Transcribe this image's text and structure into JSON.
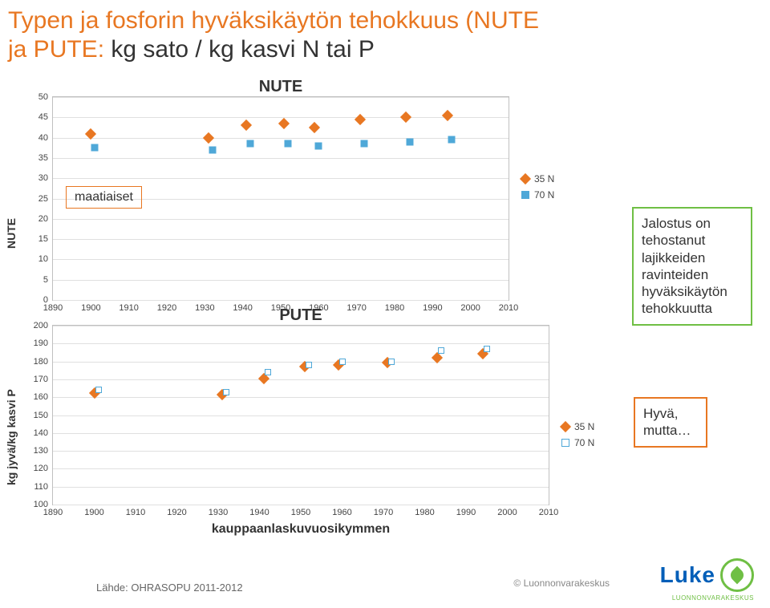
{
  "title": {
    "line1": "Typen ja fosforin hyväksikäytön tehokkuus (NUTE",
    "line2_orange": "ja PUTE:",
    "line2_black": "kg sato / kg kasvi N tai P"
  },
  "nute_chart": {
    "type": "scatter",
    "title": "NUTE",
    "y_label": "NUTE",
    "xlim": [
      1890,
      2010
    ],
    "ylim": [
      0,
      50
    ],
    "y_ticks": [
      0,
      5,
      10,
      15,
      20,
      25,
      30,
      35,
      40,
      45,
      50
    ],
    "x_ticks": [
      1890,
      1900,
      1910,
      1920,
      1930,
      1940,
      1950,
      1960,
      1970,
      1980,
      1990,
      2000,
      2010
    ],
    "grid_color": "#e0e0e0",
    "background": "#ffffff",
    "series_35N": {
      "label": "35 N",
      "color": "#e87722",
      "marker": "diamond",
      "points": [
        {
          "x": 1901,
          "y": 40
        },
        {
          "x": 1932,
          "y": 39
        },
        {
          "x": 1942,
          "y": 42
        },
        {
          "x": 1952,
          "y": 42.5
        },
        {
          "x": 1960,
          "y": 41.5
        },
        {
          "x": 1972,
          "y": 43.5
        },
        {
          "x": 1984,
          "y": 44
        },
        {
          "x": 1995,
          "y": 44.5
        }
      ]
    },
    "series_70N": {
      "label": "70 N",
      "color": "#4fa8d8",
      "marker": "square",
      "points": [
        {
          "x": 1901,
          "y": 37.5
        },
        {
          "x": 1932,
          "y": 37
        },
        {
          "x": 1942,
          "y": 38.5
        },
        {
          "x": 1952,
          "y": 38.5
        },
        {
          "x": 1960,
          "y": 38
        },
        {
          "x": 1972,
          "y": 38.5
        },
        {
          "x": 1984,
          "y": 39
        },
        {
          "x": 1995,
          "y": 39.5
        }
      ]
    },
    "annotation_box": {
      "label": "maatiaiset"
    },
    "legend_items": [
      "35 N",
      "70 N"
    ]
  },
  "pute_chart": {
    "type": "scatter",
    "title": "PUTE",
    "y_label": "kg jyvä/kg kasvi P",
    "x_label": "kauppaanlaskuvuosikymmen",
    "xlim": [
      1890,
      2010
    ],
    "ylim": [
      100,
      200
    ],
    "y_ticks": [
      100,
      110,
      120,
      130,
      140,
      150,
      160,
      170,
      180,
      190,
      200
    ],
    "x_ticks": [
      1890,
      1900,
      1910,
      1920,
      1930,
      1940,
      1950,
      1960,
      1970,
      1980,
      1990,
      2000,
      2010
    ],
    "grid_color": "#e0e0e0",
    "background": "#ffffff",
    "series_35N": {
      "label": "35 N",
      "color": "#e87722",
      "marker": "diamond",
      "points": [
        {
          "x": 1901,
          "y": 160
        },
        {
          "x": 1932,
          "y": 159
        },
        {
          "x": 1942,
          "y": 168
        },
        {
          "x": 1952,
          "y": 175
        },
        {
          "x": 1960,
          "y": 176
        },
        {
          "x": 1972,
          "y": 177
        },
        {
          "x": 1984,
          "y": 180
        },
        {
          "x": 1995,
          "y": 182
        }
      ]
    },
    "series_70N": {
      "label": "70 N",
      "color": "#4fa8d8",
      "marker": "square-open",
      "points": [
        {
          "x": 1901,
          "y": 164
        },
        {
          "x": 1932,
          "y": 163
        },
        {
          "x": 1942,
          "y": 174
        },
        {
          "x": 1952,
          "y": 178
        },
        {
          "x": 1960,
          "y": 180
        },
        {
          "x": 1972,
          "y": 180
        },
        {
          "x": 1984,
          "y": 186
        },
        {
          "x": 1995,
          "y": 187
        }
      ]
    },
    "legend_items": [
      "35 N",
      "70 N"
    ]
  },
  "right_annotations": {
    "green_box": "Jalostus on\ntehostanut\nlajikkeiden\nravinteiden\nhyväksikäytön\ntehokkuutta",
    "orange_box": "Hyvä,\nmutta…"
  },
  "footer": {
    "copyright": "© Luonnonvarakeskus",
    "source": "Lähde: OHRASOPU 2011-2012",
    "logo_text": "Luke",
    "logo_sub": "LUONNONVARAKESKUS"
  }
}
